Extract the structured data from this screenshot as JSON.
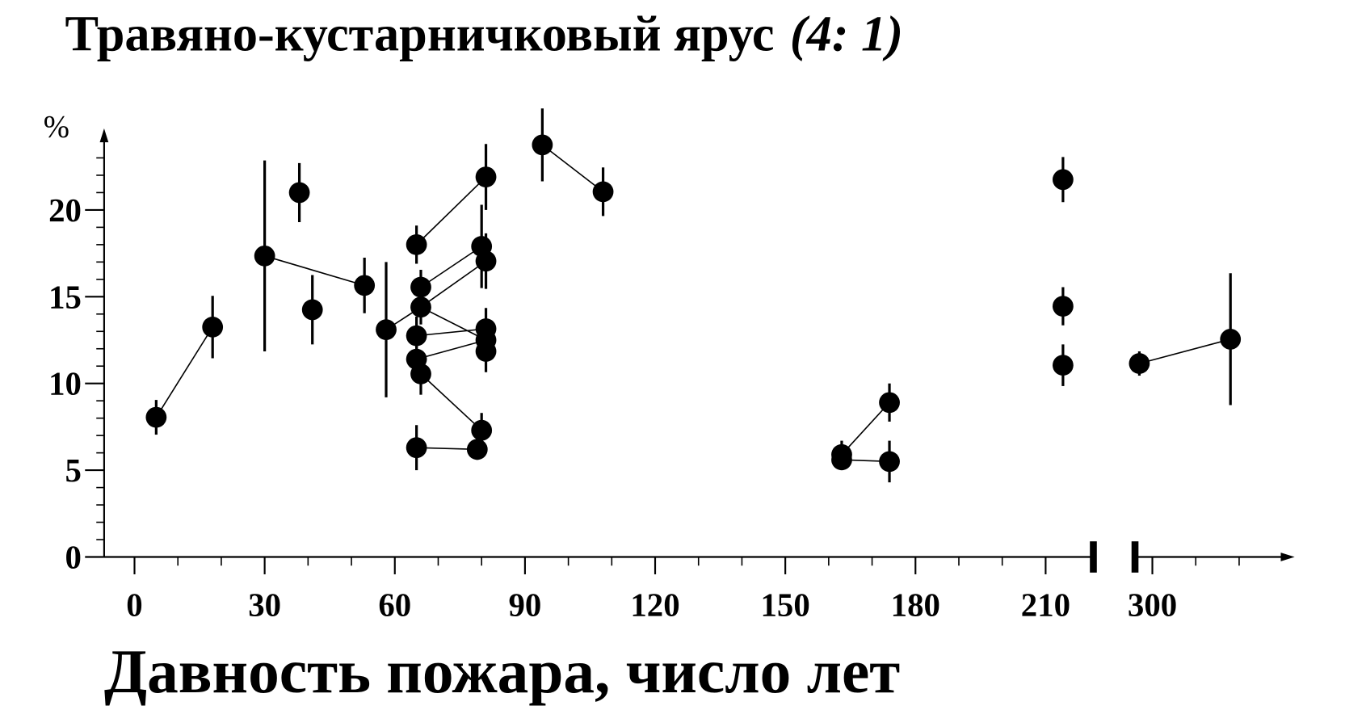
{
  "chart_data": {
    "type": "scatter",
    "title": "Травяно-кустарничковый ярус",
    "title_note": "(4: 1)",
    "y_label": "%",
    "x_label": "Давность пожара, число лет",
    "color": "#000000",
    "x": [
      5,
      18,
      30,
      38,
      41,
      53,
      58,
      65,
      66,
      66,
      65,
      65,
      66,
      65,
      79,
      80,
      80,
      81,
      81,
      81,
      81,
      81,
      94,
      108,
      163,
      163,
      174,
      174,
      214,
      214,
      214,
      297,
      318
    ],
    "values": [
      8.05,
      13.25,
      17.35,
      21.0,
      14.25,
      15.65,
      13.1,
      18.0,
      15.55,
      14.4,
      12.75,
      11.4,
      10.55,
      6.3,
      6.2,
      7.3,
      17.9,
      21.9,
      17.05,
      13.15,
      12.5,
      11.85,
      23.75,
      21.05,
      5.9,
      5.6,
      8.9,
      5.5,
      21.75,
      14.45,
      11.05,
      11.15,
      12.55
    ],
    "errors": [
      1.0,
      1.8,
      5.5,
      1.7,
      2.0,
      1.6,
      3.9,
      1.1,
      1.0,
      1.0,
      1.1,
      1.0,
      1.2,
      1.3,
      0.6,
      1.0,
      2.4,
      1.9,
      1.6,
      1.2,
      1.2,
      1.2,
      2.1,
      1.4,
      0.8,
      0.6,
      1.1,
      1.2,
      1.3,
      1.1,
      1.2,
      0.7,
      3.8
    ],
    "links": [
      [
        0,
        1
      ],
      [
        2,
        5
      ],
      [
        6,
        9
      ],
      [
        7,
        17
      ],
      [
        8,
        16
      ],
      [
        9,
        18
      ],
      [
        9,
        20
      ],
      [
        10,
        19
      ],
      [
        11,
        20
      ],
      [
        12,
        15
      ],
      [
        13,
        14
      ],
      [
        22,
        23
      ],
      [
        24,
        26
      ],
      [
        25,
        27
      ],
      [
        31,
        32
      ]
    ],
    "xlim": [
      0,
      330
    ],
    "xbreak": [
      221,
      296
    ],
    "xticks": [
      0,
      30,
      60,
      90,
      120,
      150,
      180,
      210,
      300
    ],
    "xminorticks": [
      10,
      20,
      40,
      50,
      70,
      80,
      100,
      110,
      130,
      140,
      160,
      170,
      190,
      200,
      310,
      320
    ],
    "ylim": [
      0,
      24
    ],
    "yticks": [
      0,
      5,
      10,
      15,
      20
    ],
    "yminorticks": [
      1,
      2,
      3,
      4,
      6,
      7,
      8,
      9,
      11,
      12,
      13,
      14,
      16,
      17,
      18,
      19,
      21,
      22,
      23
    ]
  }
}
